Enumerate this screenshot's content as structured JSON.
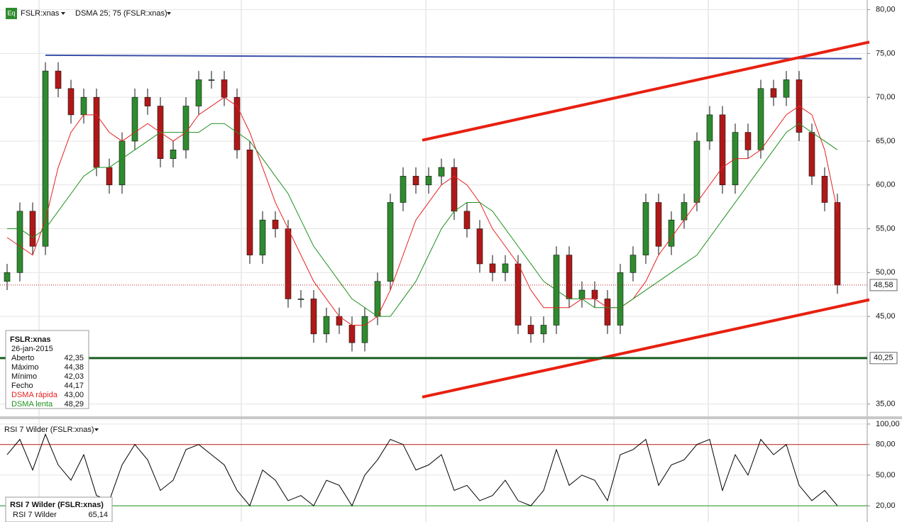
{
  "chart_data": [
    {
      "type": "candlestick",
      "title": "FSLR:xnas",
      "subtitle": "DSMA 25; 75 (FSLR:xnas)",
      "icon": "Eq",
      "open": [
        49,
        50,
        57,
        53,
        73,
        71,
        68,
        70,
        62,
        60,
        65,
        70,
        69,
        63,
        64,
        69,
        72,
        72,
        70,
        64,
        52,
        56,
        55,
        47,
        47,
        43,
        45,
        44,
        42,
        45,
        49,
        58,
        61,
        60,
        61,
        62,
        57,
        55,
        51,
        50,
        51,
        44,
        43,
        44,
        52,
        47,
        48,
        47,
        44,
        50,
        52,
        58,
        53,
        56,
        58,
        65,
        68,
        60,
        66,
        64,
        71,
        70,
        72,
        66,
        61,
        58
      ],
      "high": [
        51,
        58,
        58,
        74,
        74,
        72,
        71,
        71,
        63,
        66,
        71,
        71,
        70,
        65,
        70,
        73,
        73,
        73,
        71,
        65,
        57,
        57,
        56,
        48,
        48,
        46,
        46,
        45,
        46,
        50,
        59,
        62,
        62,
        62,
        63,
        63,
        58,
        56,
        52,
        52,
        52,
        45,
        45,
        53,
        53,
        49,
        49,
        48,
        51,
        53,
        59,
        59,
        57,
        59,
        66,
        69,
        69,
        67,
        67,
        72,
        72,
        73,
        73,
        67,
        62,
        59
      ],
      "low": [
        48,
        49,
        52,
        52,
        70,
        67,
        67,
        61,
        59,
        59,
        64,
        68,
        62,
        62,
        63,
        68,
        71,
        69,
        63,
        51,
        51,
        54,
        46,
        46,
        42,
        42,
        43,
        41,
        41,
        44,
        48,
        57,
        59,
        59,
        60,
        56,
        54,
        50,
        49,
        49,
        43,
        42,
        42,
        43,
        46,
        46,
        46,
        43,
        43,
        49,
        51,
        52,
        52,
        55,
        57,
        64,
        59,
        59,
        63,
        63,
        69,
        69,
        65,
        60,
        57,
        47.58
      ],
      "close": [
        50,
        57,
        53,
        73,
        71,
        68,
        70,
        62,
        60,
        65,
        70,
        69,
        63,
        64,
        69,
        72,
        72,
        70,
        64,
        52,
        56,
        55,
        47,
        47,
        43,
        45,
        44,
        42,
        45,
        49,
        58,
        61,
        60,
        61,
        62,
        57,
        55,
        51,
        50,
        51,
        44,
        43,
        44,
        52,
        47,
        48,
        47,
        44,
        50,
        52,
        58,
        53,
        56,
        58,
        65,
        68,
        60,
        66,
        64,
        71,
        70,
        72,
        66,
        61,
        58,
        48.58
      ],
      "up_color": "#2e8b2e",
      "down_color": "#b01818",
      "series": [
        {
          "name": "DSMA rápida",
          "color": "#e82020",
          "readout": "43,00",
          "values": [
            54,
            53,
            52,
            56,
            62,
            66,
            68,
            68,
            66,
            65,
            66,
            67,
            66,
            65,
            66,
            68,
            69,
            70,
            69,
            66,
            62,
            58,
            55,
            52,
            49,
            47,
            45,
            44,
            44,
            45,
            48,
            52,
            56,
            58,
            60,
            61,
            60,
            58,
            55,
            53,
            51,
            48,
            46,
            46,
            46,
            47,
            47,
            46,
            46,
            47,
            49,
            52,
            54,
            56,
            58,
            60,
            62,
            63,
            63,
            64,
            66,
            68,
            69,
            68,
            64,
            57
          ]
        },
        {
          "name": "DSMA lenta",
          "color": "#1e901e",
          "readout": "48,29",
          "values": [
            55,
            55,
            54,
            55,
            57,
            59,
            61,
            62,
            62,
            63,
            64,
            65,
            66,
            66,
            66,
            66,
            67,
            67,
            66,
            65,
            63,
            61,
            59,
            56,
            53,
            51,
            49,
            47,
            46,
            45,
            45,
            47,
            49,
            52,
            55,
            57,
            58,
            58,
            57,
            55,
            53,
            51,
            49,
            48,
            47,
            47,
            46,
            46,
            46,
            47,
            48,
            49,
            50,
            51,
            52,
            54,
            56,
            58,
            60,
            62,
            64,
            66,
            67,
            66,
            65,
            64
          ]
        }
      ],
      "ylim": [
        33.6,
        81.1
      ],
      "yticks": [
        {
          "value": 35,
          "label": "35,00"
        },
        {
          "value": 45,
          "label": "45,00"
        },
        {
          "value": 50,
          "label": "50,00"
        },
        {
          "value": 55,
          "label": "55,00"
        },
        {
          "value": 60,
          "label": "60,00"
        },
        {
          "value": 65,
          "label": "65,00"
        },
        {
          "value": 70,
          "label": "70,00"
        },
        {
          "value": 75,
          "label": "75,00"
        },
        {
          "value": 80,
          "label": "80,00"
        }
      ],
      "levels": [
        {
          "value": 40.25,
          "label": "40,25",
          "color": "#1a5e20"
        },
        {
          "value": 48.58,
          "label": "48,58",
          "color": "#c02020"
        }
      ],
      "trendlines": [
        {
          "color": "#3a4fa8",
          "x": [
            3,
            66.9
          ],
          "y": [
            74.8,
            74.4
          ]
        },
        {
          "color": "#e82010",
          "x": [
            32.5,
            67.5
          ],
          "y": [
            65.1,
            76.3
          ]
        },
        {
          "color": "#e82010",
          "x": [
            32.5,
            67.5
          ],
          "y": [
            35.8,
            46.9
          ]
        }
      ],
      "info_box": {
        "title": "FSLR:xnas",
        "date": "26-jan-2015",
        "rows": [
          {
            "label": "Aberto",
            "value": "42,35"
          },
          {
            "label": "Máximo",
            "value": "44,38"
          },
          {
            "label": "Mínimo",
            "value": "42,03"
          },
          {
            "label": "Fecho",
            "value": "44,17"
          }
        ]
      }
    },
    {
      "type": "line",
      "title": "RSI 7 Wilder (FSLR:xnas)",
      "series": [
        {
          "name": "RSI 7 Wilder",
          "color": "#000000",
          "readout": "65,14",
          "values": [
            70,
            85,
            55,
            90,
            60,
            45,
            70,
            30,
            25,
            60,
            80,
            65,
            35,
            45,
            75,
            80,
            70,
            60,
            35,
            20,
            55,
            45,
            25,
            30,
            20,
            45,
            40,
            20,
            50,
            65,
            85,
            80,
            55,
            60,
            70,
            35,
            40,
            25,
            30,
            45,
            25,
            20,
            35,
            75,
            40,
            50,
            45,
            25,
            70,
            75,
            85,
            40,
            60,
            65,
            80,
            85,
            35,
            70,
            50,
            85,
            70,
            80,
            40,
            25,
            35,
            20
          ]
        }
      ],
      "ylim": [
        4.1,
        104.8
      ],
      "yticks": [
        {
          "value": 100,
          "label": "100,00"
        },
        {
          "value": 80,
          "label": "80,00"
        },
        {
          "value": 50,
          "label": "50,00"
        },
        {
          "value": 20,
          "label": "20,00"
        }
      ],
      "hlines": [
        {
          "value": 80,
          "color": "#c02020"
        },
        {
          "value": 20,
          "color": "#1e901e"
        }
      ]
    }
  ]
}
